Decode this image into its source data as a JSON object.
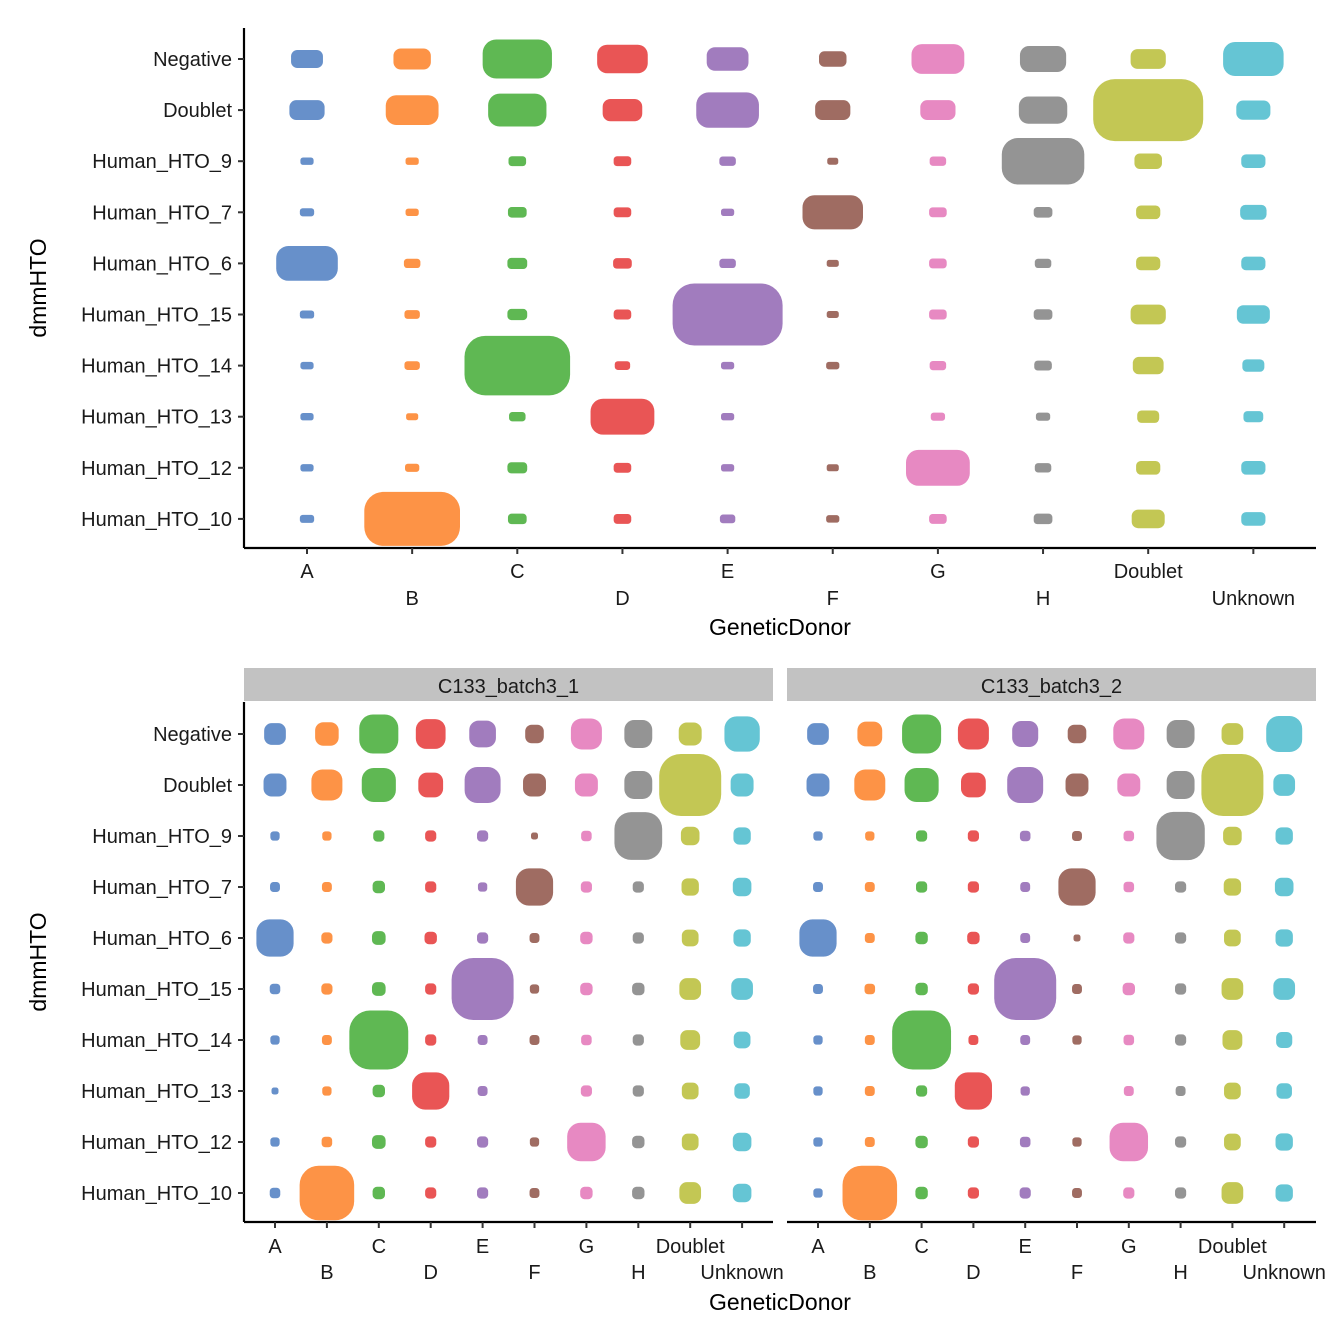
{
  "colors": {
    "A": "#5f8ac7",
    "B": "#fd8d3c",
    "C": "#56b44a",
    "D": "#e84c4c",
    "E": "#9c75bb",
    "F": "#9a645a",
    "G": "#e683bf",
    "H": "#8e8e8e",
    "Doublet": "#c0c44b",
    "Unknown": "#5dc2d2",
    "strip_background": "#c2c2c2"
  },
  "chart_data": [
    {
      "type": "scatter",
      "subtype": "jitter",
      "panel": "",
      "xlabel": "GeneticDonor",
      "ylabel": "dmmHTO",
      "x_categories": [
        "A",
        "B",
        "C",
        "D",
        "E",
        "F",
        "G",
        "H",
        "Doublet",
        "Unknown"
      ],
      "y_categories": [
        "Negative",
        "Doublet",
        "Human_HTO_9",
        "Human_HTO_7",
        "Human_HTO_6",
        "Human_HTO_15",
        "Human_HTO_14",
        "Human_HTO_13",
        "Human_HTO_12",
        "Human_HTO_10"
      ],
      "grid": false,
      "legend": "none",
      "relative_count": [
        [
          0.29,
          0.34,
          0.63,
          0.46,
          0.38,
          0.25,
          0.48,
          0.42,
          0.32,
          0.55
        ],
        [
          0.32,
          0.48,
          0.53,
          0.36,
          0.57,
          0.32,
          0.32,
          0.44,
          1.0,
          0.31
        ],
        [
          0.12,
          0.12,
          0.16,
          0.16,
          0.15,
          0.1,
          0.15,
          0.75,
          0.25,
          0.22
        ],
        [
          0.13,
          0.12,
          0.17,
          0.16,
          0.12,
          0.55,
          0.16,
          0.17,
          0.22,
          0.24
        ],
        [
          0.56,
          0.15,
          0.18,
          0.17,
          0.15,
          0.11,
          0.16,
          0.15,
          0.22,
          0.22
        ],
        [
          0.13,
          0.14,
          0.18,
          0.16,
          1.0,
          0.11,
          0.16,
          0.17,
          0.32,
          0.3
        ],
        [
          0.12,
          0.14,
          0.96,
          0.14,
          0.12,
          0.12,
          0.15,
          0.16,
          0.28,
          0.2
        ],
        [
          0.12,
          0.11,
          0.15,
          0.58,
          0.12,
          0,
          0.13,
          0.13,
          0.2,
          0.18
        ],
        [
          0.12,
          0.13,
          0.18,
          0.16,
          0.12,
          0.11,
          0.58,
          0.15,
          0.22,
          0.22
        ],
        [
          0.13,
          0.87,
          0.17,
          0.16,
          0.14,
          0.12,
          0.16,
          0.17,
          0.3,
          0.22
        ]
      ]
    },
    {
      "type": "scatter",
      "subtype": "jitter",
      "panel": "C133_batch3_1",
      "xlabel": "GeneticDonor",
      "ylabel": "dmmHTO",
      "x_categories": [
        "A",
        "B",
        "C",
        "D",
        "E",
        "F",
        "G",
        "H",
        "Doublet",
        "Unknown"
      ],
      "y_categories": [
        "Negative",
        "Doublet",
        "Human_HTO_9",
        "Human_HTO_7",
        "Human_HTO_6",
        "Human_HTO_15",
        "Human_HTO_14",
        "Human_HTO_13",
        "Human_HTO_12",
        "Human_HTO_10"
      ],
      "grid": false,
      "legend": "none",
      "relative_count": [
        [
          0.35,
          0.38,
          0.63,
          0.48,
          0.43,
          0.3,
          0.5,
          0.45,
          0.37,
          0.57
        ],
        [
          0.37,
          0.5,
          0.55,
          0.4,
          0.58,
          0.37,
          0.37,
          0.45,
          1.0,
          0.37
        ],
        [
          0.15,
          0.15,
          0.18,
          0.18,
          0.18,
          0.05,
          0.17,
          0.77,
          0.3,
          0.28
        ],
        [
          0.16,
          0.16,
          0.2,
          0.18,
          0.15,
          0.6,
          0.18,
          0.18,
          0.28,
          0.3
        ],
        [
          0.6,
          0.18,
          0.22,
          0.2,
          0.18,
          0.16,
          0.2,
          0.18,
          0.27,
          0.28
        ],
        [
          0.17,
          0.18,
          0.22,
          0.18,
          1.0,
          0.15,
          0.2,
          0.2,
          0.35,
          0.35
        ],
        [
          0.15,
          0.16,
          0.95,
          0.18,
          0.16,
          0.16,
          0.17,
          0.18,
          0.32,
          0.27
        ],
        [
          0.05,
          0.15,
          0.2,
          0.6,
          0.16,
          0,
          0.18,
          0.18,
          0.27,
          0.25
        ],
        [
          0.15,
          0.17,
          0.22,
          0.18,
          0.18,
          0.15,
          0.62,
          0.2,
          0.27,
          0.3
        ],
        [
          0.17,
          0.88,
          0.2,
          0.18,
          0.18,
          0.16,
          0.2,
          0.2,
          0.35,
          0.3
        ]
      ]
    },
    {
      "type": "scatter",
      "subtype": "jitter",
      "panel": "C133_batch3_2",
      "xlabel": "GeneticDonor",
      "ylabel": "",
      "x_categories": [
        "A",
        "B",
        "C",
        "D",
        "E",
        "F",
        "G",
        "H",
        "Doublet",
        "Unknown"
      ],
      "y_categories": [
        "Negative",
        "Doublet",
        "Human_HTO_9",
        "Human_HTO_7",
        "Human_HTO_6",
        "Human_HTO_15",
        "Human_HTO_14",
        "Human_HTO_13",
        "Human_HTO_12",
        "Human_HTO_10"
      ],
      "grid": false,
      "legend": "none",
      "relative_count": [
        [
          0.35,
          0.4,
          0.63,
          0.5,
          0.42,
          0.3,
          0.5,
          0.45,
          0.35,
          0.58
        ],
        [
          0.37,
          0.5,
          0.55,
          0.4,
          0.58,
          0.37,
          0.37,
          0.45,
          1.0,
          0.35
        ],
        [
          0.15,
          0.15,
          0.18,
          0.18,
          0.17,
          0.16,
          0.17,
          0.78,
          0.3,
          0.28
        ],
        [
          0.16,
          0.16,
          0.18,
          0.18,
          0.16,
          0.6,
          0.17,
          0.18,
          0.28,
          0.3
        ],
        [
          0.6,
          0.16,
          0.2,
          0.2,
          0.16,
          0.05,
          0.18,
          0.18,
          0.27,
          0.28
        ],
        [
          0.16,
          0.17,
          0.2,
          0.18,
          1.0,
          0.16,
          0.2,
          0.18,
          0.35,
          0.35
        ],
        [
          0.15,
          0.16,
          0.95,
          0.16,
          0.16,
          0.15,
          0.17,
          0.18,
          0.32,
          0.26
        ],
        [
          0.15,
          0.16,
          0.18,
          0.6,
          0.15,
          0,
          0.16,
          0.16,
          0.27,
          0.25
        ],
        [
          0.15,
          0.16,
          0.2,
          0.18,
          0.17,
          0.15,
          0.62,
          0.18,
          0.27,
          0.28
        ],
        [
          0.15,
          0.88,
          0.2,
          0.18,
          0.18,
          0.16,
          0.18,
          0.18,
          0.35,
          0.28
        ]
      ]
    }
  ]
}
